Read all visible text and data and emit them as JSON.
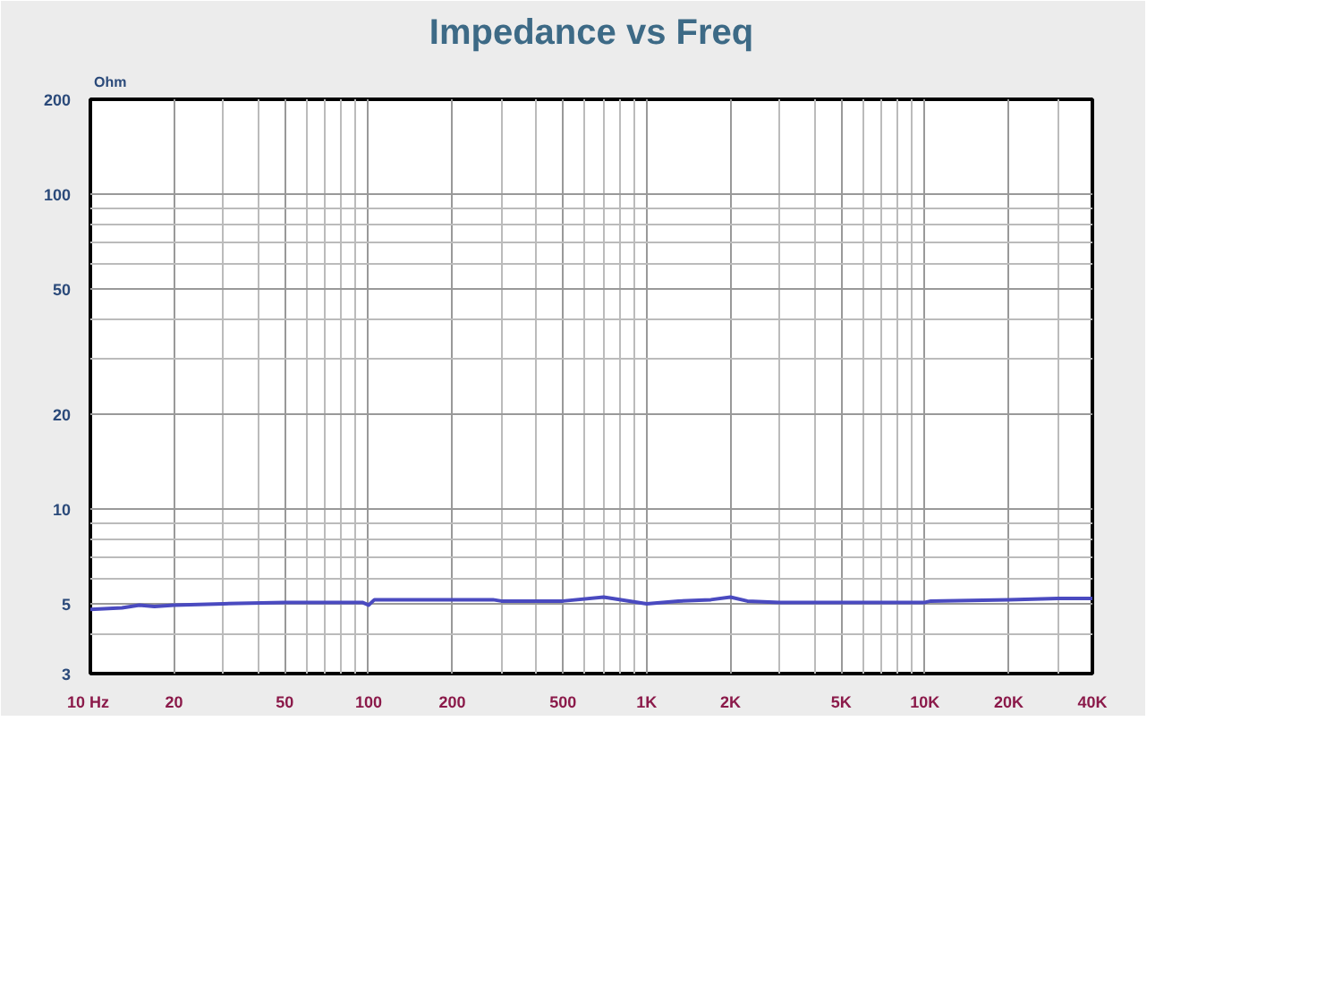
{
  "chart_data": {
    "type": "line",
    "title": "Impedance vs Freq",
    "ylabel": "Ohm",
    "log": "xy",
    "grid": true,
    "marker": "none",
    "line_style": "solid",
    "x": [
      10,
      13,
      15,
      17,
      20,
      30,
      50,
      95,
      100,
      105,
      200,
      280,
      300,
      500,
      700,
      1000,
      1300,
      1700,
      2000,
      2300,
      3000,
      10000,
      10500,
      20000,
      30000,
      40000
    ],
    "series": [
      {
        "color": "#4a4ac0",
        "values": [
          4.8,
          4.85,
          4.95,
          4.9,
          4.95,
          5.0,
          5.05,
          5.05,
          4.95,
          5.15,
          5.15,
          5.15,
          5.1,
          5.1,
          5.25,
          5.0,
          5.1,
          5.15,
          5.25,
          5.1,
          5.05,
          5.05,
          5.1,
          5.15,
          5.2,
          5.2
        ]
      }
    ],
    "xlim": [
      10,
      40000
    ],
    "ylim": [
      3,
      200
    ],
    "xticks": [
      {
        "value": 10,
        "label": "10  Hz"
      },
      20,
      50,
      100,
      200,
      500,
      {
        "value": 1000,
        "label": "1K"
      },
      {
        "value": 2000,
        "label": "2K"
      },
      {
        "value": 5000,
        "label": "5K"
      },
      {
        "value": 10000,
        "label": "10K"
      },
      {
        "value": 20000,
        "label": "20K"
      },
      {
        "value": 40000,
        "label": "40K"
      }
    ],
    "yticks": [
      3,
      5,
      10,
      20,
      50,
      100,
      200
    ]
  }
}
